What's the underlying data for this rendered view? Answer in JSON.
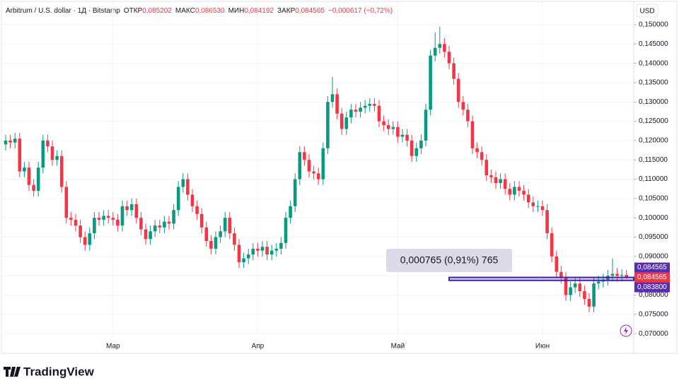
{
  "chart_data": {
    "type": "candlestick",
    "title": "Arbitrum / U.S. dollar · 1Д · Bitstamp",
    "ohlc": [
      {
        "name": "ОТКР",
        "value": 0.085202,
        "label": "0,085202"
      },
      {
        "name": "МАКС",
        "value": 0.08653,
        "label": "0,086530"
      },
      {
        "name": "МИН",
        "value": 0.084192,
        "label": "0,084192"
      },
      {
        "name": "ЗАКР",
        "value": 0.084565,
        "label": "0,084565"
      }
    ],
    "change": {
      "value": -0.000617,
      "label": "−0,000617 (−0,72%)"
    },
    "currency": "USD",
    "brand": "TradingView",
    "up_color": "#089981",
    "down_color": "#f23645",
    "categories": [
      null,
      null,
      null,
      null,
      null,
      null,
      null,
      null,
      null,
      null,
      null,
      null,
      null,
      null,
      null,
      null,
      null,
      null,
      null,
      null,
      null,
      null,
      null,
      "Мар",
      null,
      null,
      null,
      null,
      null,
      null,
      null,
      null,
      null,
      null,
      null,
      null,
      null,
      null,
      null,
      null,
      null,
      null,
      null,
      null,
      null,
      null,
      null,
      null,
      null,
      null,
      null,
      null,
      null,
      null,
      "Апр",
      null,
      null,
      null,
      null,
      null,
      null,
      null,
      null,
      null,
      null,
      null,
      null,
      null,
      null,
      null,
      null,
      null,
      null,
      null,
      null,
      null,
      null,
      null,
      null,
      null,
      null,
      null,
      null,
      null,
      "Май",
      null,
      null,
      null,
      null,
      null,
      null,
      null,
      null,
      null,
      null,
      null,
      null,
      null,
      null,
      null,
      null,
      null,
      null,
      null,
      null,
      null,
      null,
      null,
      null,
      null,
      null,
      null,
      null,
      null,
      null,
      "Июн",
      null,
      null,
      null,
      null,
      null,
      null,
      null,
      null,
      null,
      null,
      null,
      null,
      null,
      null,
      null,
      null,
      null,
      null
    ],
    "open": [
      0.119,
      0.12,
      0.1195,
      0.1205,
      0.112,
      0.113,
      0.1085,
      0.107,
      0.113,
      0.12,
      0.1185,
      0.115,
      0.116,
      0.108,
      0.1,
      0.0995,
      0.098,
      0.095,
      0.093,
      0.096,
      0.1,
      0.0995,
      0.1005,
      0.1,
      0.0995,
      0.098,
      0.103,
      0.102,
      0.1035,
      0.1,
      0.097,
      0.0945,
      0.0965,
      0.098,
      0.0975,
      0.099,
      0.0985,
      0.102,
      0.108,
      0.11,
      0.106,
      0.103,
      0.101,
      0.0975,
      0.094,
      0.092,
      0.095,
      0.0965,
      0.1,
      0.096,
      0.093,
      0.0885,
      0.0895,
      0.0905,
      0.092,
      0.0915,
      0.0925,
      0.0905,
      0.0915,
      0.092,
      0.0935,
      0.1,
      0.103,
      0.11,
      0.117,
      0.115,
      0.112,
      0.1115,
      0.11,
      0.118,
      0.13,
      0.132,
      0.127,
      0.123,
      0.126,
      0.128,
      0.1275,
      0.1285,
      0.129,
      0.1295,
      0.129,
      0.125,
      0.124,
      0.123,
      0.1235,
      0.121,
      0.1215,
      0.12,
      0.116,
      0.118,
      0.12,
      0.128,
      0.142,
      0.144,
      0.145,
      0.143,
      0.14,
      0.136,
      0.13,
      0.128,
      0.125,
      0.118,
      0.117,
      0.115,
      0.111,
      0.1105,
      0.109,
      0.11,
      0.1075,
      0.106,
      0.108,
      0.107,
      0.106,
      0.104,
      0.103,
      0.103,
      0.102,
      0.096,
      0.09,
      0.086,
      0.0845,
      0.08,
      0.082,
      0.083,
      0.081,
      0.079,
      0.077,
      0.083,
      0.0835,
      0.084,
      0.085,
      0.0855,
      0.085,
      0.085202
    ],
    "high": [
      0.1215,
      0.1215,
      0.122,
      0.122,
      0.1145,
      0.1145,
      0.11,
      0.1145,
      0.1215,
      0.1215,
      0.12,
      0.1175,
      0.1175,
      0.1095,
      0.1015,
      0.101,
      0.0995,
      0.0965,
      0.0975,
      0.1015,
      0.1015,
      0.102,
      0.102,
      0.1015,
      0.101,
      0.1045,
      0.1045,
      0.105,
      0.105,
      0.1015,
      0.0985,
      0.098,
      0.0995,
      0.0995,
      0.1005,
      0.1005,
      0.1035,
      0.1095,
      0.1115,
      0.1115,
      0.1075,
      0.1045,
      0.1025,
      0.099,
      0.0955,
      0.0965,
      0.098,
      0.1015,
      0.1015,
      0.0975,
      0.0945,
      0.091,
      0.092,
      0.0935,
      0.0935,
      0.094,
      0.094,
      0.093,
      0.0935,
      0.095,
      0.1015,
      0.1045,
      0.1115,
      0.1185,
      0.1185,
      0.1165,
      0.1135,
      0.113,
      0.1195,
      0.1315,
      0.1365,
      0.1335,
      0.1285,
      0.1275,
      0.1295,
      0.1295,
      0.13,
      0.1305,
      0.131,
      0.131,
      0.1305,
      0.1265,
      0.1255,
      0.125,
      0.125,
      0.123,
      0.123,
      0.1215,
      0.1195,
      0.1215,
      0.1295,
      0.1435,
      0.148,
      0.1495,
      0.1465,
      0.1445,
      0.1415,
      0.1375,
      0.1315,
      0.1295,
      0.1265,
      0.1195,
      0.1185,
      0.1165,
      0.1125,
      0.112,
      0.1115,
      0.1115,
      0.109,
      0.1095,
      0.1095,
      0.1085,
      0.1075,
      0.1055,
      0.1045,
      0.1045,
      0.1035,
      0.0975,
      0.0915,
      0.0875,
      0.086,
      0.0835,
      0.0845,
      0.0845,
      0.0825,
      0.0805,
      0.0845,
      0.085,
      0.0855,
      0.0865,
      0.0895,
      0.087,
      0.0867,
      0.08653
    ],
    "low": [
      0.1175,
      0.118,
      0.118,
      0.1105,
      0.1105,
      0.107,
      0.1055,
      0.1055,
      0.1115,
      0.117,
      0.1135,
      0.1135,
      0.1065,
      0.0985,
      0.098,
      0.0965,
      0.0935,
      0.0915,
      0.0915,
      0.0945,
      0.098,
      0.098,
      0.0985,
      0.098,
      0.0965,
      0.0965,
      0.1005,
      0.1005,
      0.0985,
      0.0955,
      0.093,
      0.093,
      0.095,
      0.096,
      0.096,
      0.097,
      0.097,
      0.1005,
      0.1065,
      0.1045,
      0.1015,
      0.0995,
      0.096,
      0.0925,
      0.0905,
      0.0905,
      0.0935,
      0.095,
      0.0945,
      0.0915,
      0.087,
      0.087,
      0.088,
      0.089,
      0.09,
      0.09,
      0.089,
      0.089,
      0.09,
      0.0905,
      0.092,
      0.0985,
      0.1015,
      0.1085,
      0.1135,
      0.1105,
      0.11,
      0.1085,
      0.1085,
      0.1165,
      0.1285,
      0.1255,
      0.1215,
      0.1215,
      0.1245,
      0.126,
      0.126,
      0.127,
      0.1275,
      0.1275,
      0.1235,
      0.1225,
      0.1215,
      0.1215,
      0.1195,
      0.1195,
      0.1185,
      0.1145,
      0.1145,
      0.1165,
      0.1185,
      0.1265,
      0.1405,
      0.1425,
      0.1415,
      0.1385,
      0.1345,
      0.1285,
      0.1265,
      0.1235,
      0.1165,
      0.1155,
      0.1135,
      0.1095,
      0.109,
      0.1075,
      0.1075,
      0.106,
      0.1045,
      0.1045,
      0.1055,
      0.1045,
      0.1025,
      0.1015,
      0.1015,
      0.1005,
      0.0945,
      0.0885,
      0.0845,
      0.083,
      0.0785,
      0.0785,
      0.0805,
      0.0795,
      0.0775,
      0.0755,
      0.0755,
      0.0815,
      0.082,
      0.0825,
      0.0835,
      0.0835,
      0.0835,
      0.084192
    ],
    "close": [
      0.12,
      0.1195,
      0.1205,
      0.112,
      0.113,
      0.1085,
      0.107,
      0.113,
      0.12,
      0.1185,
      0.115,
      0.116,
      0.108,
      0.1,
      0.0995,
      0.098,
      0.095,
      0.093,
      0.096,
      0.1,
      0.0995,
      0.1005,
      0.1,
      0.0995,
      0.098,
      0.103,
      0.102,
      0.1035,
      0.1,
      0.097,
      0.0945,
      0.0965,
      0.098,
      0.0975,
      0.099,
      0.0985,
      0.102,
      0.108,
      0.11,
      0.106,
      0.103,
      0.101,
      0.0975,
      0.094,
      0.092,
      0.095,
      0.0965,
      0.1,
      0.096,
      0.093,
      0.0885,
      0.0895,
      0.0905,
      0.092,
      0.0915,
      0.0925,
      0.0905,
      0.0915,
      0.092,
      0.0935,
      0.1,
      0.103,
      0.11,
      0.117,
      0.115,
      0.112,
      0.1115,
      0.11,
      0.118,
      0.13,
      0.132,
      0.127,
      0.123,
      0.126,
      0.128,
      0.1275,
      0.1285,
      0.129,
      0.1295,
      0.129,
      0.125,
      0.124,
      0.123,
      0.1235,
      0.121,
      0.1215,
      0.12,
      0.116,
      0.118,
      0.12,
      0.128,
      0.142,
      0.144,
      0.145,
      0.143,
      0.14,
      0.136,
      0.13,
      0.128,
      0.125,
      0.118,
      0.117,
      0.115,
      0.111,
      0.1105,
      0.109,
      0.11,
      0.1075,
      0.106,
      0.108,
      0.107,
      0.106,
      0.104,
      0.103,
      0.103,
      0.102,
      0.096,
      0.09,
      0.086,
      0.0845,
      0.08,
      0.082,
      0.083,
      0.081,
      0.079,
      0.077,
      0.083,
      0.0835,
      0.084,
      0.085,
      0.0855,
      0.085,
      0.0852,
      0.084565
    ],
    "ylim": [
      0.0649,
      0.1564
    ],
    "yticks": [
      {
        "value": 0.07,
        "label": "0,070000"
      },
      {
        "value": 0.075,
        "label": "0,075000"
      },
      {
        "value": 0.08,
        "label": "0,080000"
      },
      {
        "value": 0.085,
        "label": "0,085000"
      },
      {
        "value": 0.09,
        "label": "0,090000"
      },
      {
        "value": 0.095,
        "label": "0,095000"
      },
      {
        "value": 0.1,
        "label": "0,100000"
      },
      {
        "value": 0.105,
        "label": "0,105000"
      },
      {
        "value": 0.11,
        "label": "0,110000"
      },
      {
        "value": 0.115,
        "label": "0,115000"
      },
      {
        "value": 0.12,
        "label": "0,120000"
      },
      {
        "value": 0.125,
        "label": "0,125000"
      },
      {
        "value": 0.13,
        "label": "0,130000"
      },
      {
        "value": 0.135,
        "label": "0,135000"
      },
      {
        "value": 0.14,
        "label": "0,140000"
      },
      {
        "value": 0.145,
        "label": "0,145000"
      },
      {
        "value": 0.15,
        "label": "0,150000"
      }
    ],
    "grid": true,
    "measure": {
      "label": "0,000765 (0,91%) 765",
      "low": 0.0838,
      "high": 0.084565,
      "color": "#3f1fa8"
    },
    "price_labels": [
      {
        "value": 0.084565,
        "label": "0,084565",
        "color": "#5b2bb5"
      },
      {
        "value": 0.084565,
        "label": "0,084565",
        "color": "#f23645"
      },
      {
        "value": 0.0838,
        "label": "0,083800",
        "color": "#5b2bb5"
      }
    ]
  }
}
